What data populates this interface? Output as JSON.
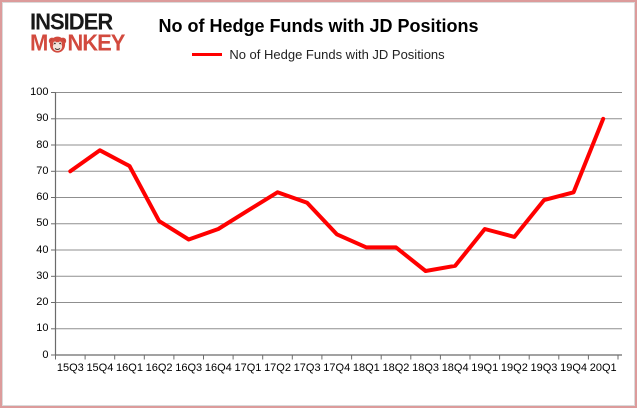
{
  "logo": {
    "line1": "INSIDER",
    "line2_pre": "M",
    "line2_post": "NKEY"
  },
  "header": {
    "title": "No of Hedge Funds with JD Positions"
  },
  "legend": {
    "label": "No of Hedge Funds with JD Positions"
  },
  "colors": {
    "series_line": "#ff0000",
    "logo_black": "#181818",
    "logo_red": "#d24a3e",
    "gridline": "#8f8f8f",
    "axis": "#6b6b6b",
    "page_border": "#dc9b9b",
    "chart_frame": "#dadada",
    "text": "#000000"
  },
  "chart_data": {
    "type": "line",
    "title": "No of Hedge Funds with JD Positions",
    "series": [
      {
        "name": "No of Hedge Funds with JD Positions",
        "values": [
          70,
          78,
          72,
          51,
          44,
          48,
          55,
          62,
          58,
          46,
          41,
          41,
          32,
          34,
          48,
          45,
          59,
          62,
          90
        ]
      }
    ],
    "categories": [
      "15Q3",
      "15Q4",
      "16Q1",
      "16Q2",
      "16Q3",
      "16Q4",
      "17Q1",
      "17Q2",
      "17Q3",
      "17Q4",
      "18Q1",
      "18Q2",
      "18Q3",
      "18Q4",
      "19Q1",
      "19Q2",
      "19Q3",
      "19Q4",
      "20Q1"
    ],
    "xlabel": "",
    "ylabel": "",
    "ylim": [
      0,
      100
    ],
    "yticks": [
      0,
      10,
      20,
      30,
      40,
      50,
      60,
      70,
      80,
      90,
      100
    ],
    "grid": "horizontal",
    "legend_position": "top",
    "line_width": 4
  }
}
